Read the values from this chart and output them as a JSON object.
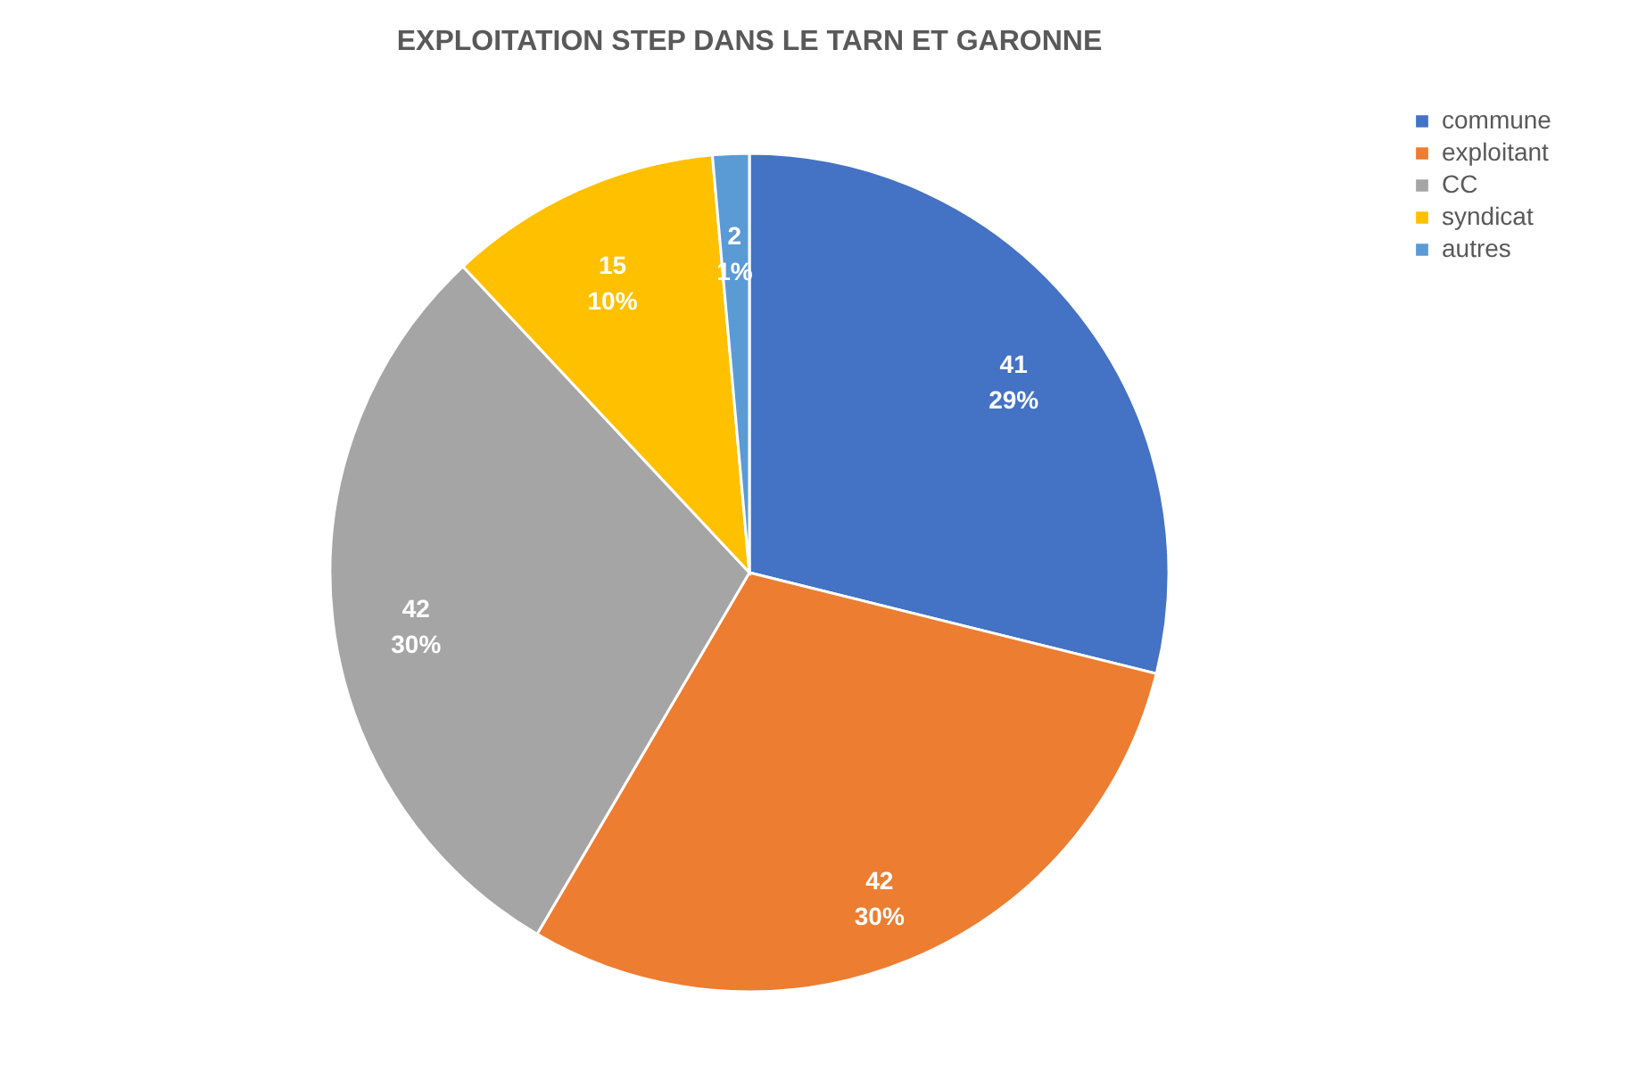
{
  "chart_data": {
    "type": "pie",
    "title": "EXPLOITATION STEP DANS LE TARN ET GARONNE",
    "categories": [
      "commune",
      "exploitant",
      "CC",
      "syndicat",
      "autres"
    ],
    "values": [
      41,
      42,
      42,
      15,
      2
    ],
    "colors": [
      "#4472c4",
      "#ed7d31",
      "#a5a5a5",
      "#ffc000",
      "#5b9bd5"
    ],
    "value_labels": [
      "41\n29%",
      "42\n30%",
      "42\n30%",
      "15\n10%",
      "2\n1%"
    ],
    "legend": "right"
  }
}
